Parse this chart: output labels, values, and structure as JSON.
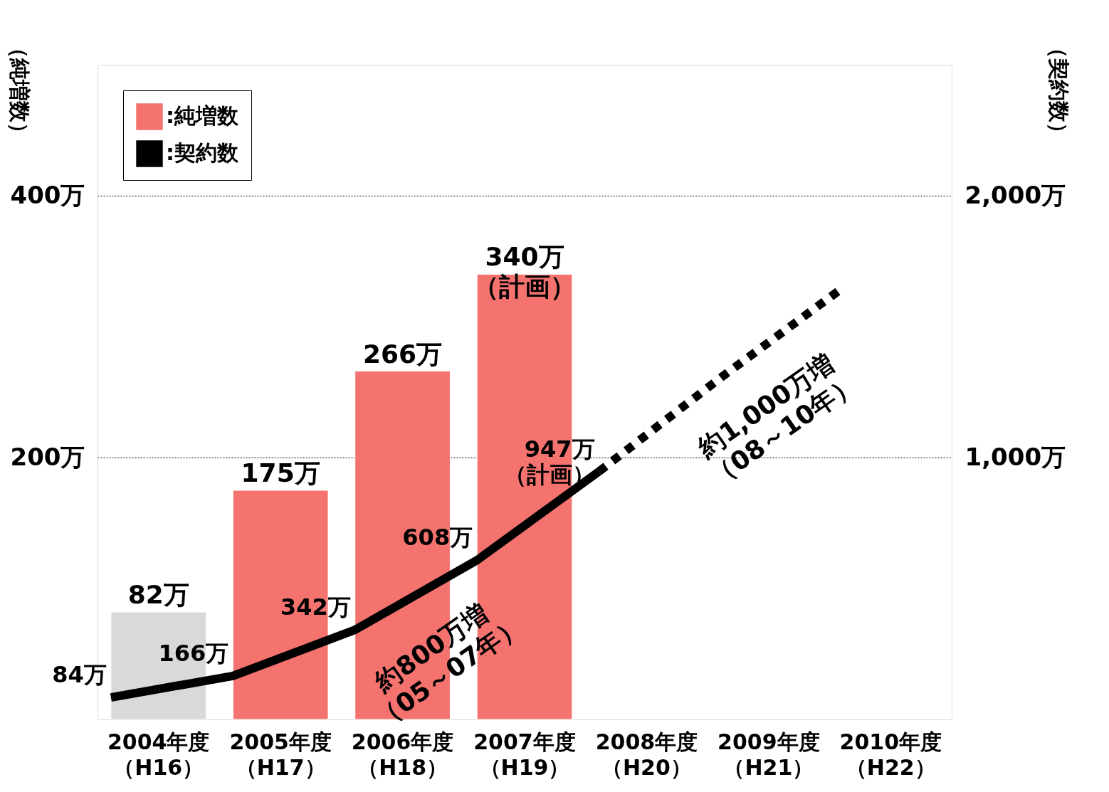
{
  "chart_data": {
    "type": "bar",
    "ylabel": "（純増数）",
    "y2label": "（契約数）",
    "categories": [
      "2004年度（H16）",
      "2005年度（H17）",
      "2006年度（H18）",
      "2007年度（H19）",
      "2008年度（H20）",
      "2009年度（H21）",
      "2010年度（H22）"
    ],
    "ylim": [
      0,
      500
    ],
    "yticks": [
      {
        "value": 200,
        "label": "200万"
      },
      {
        "value": 400,
        "label": "400万"
      }
    ],
    "y2lim": [
      0,
      2500
    ],
    "y2ticks": [
      {
        "value": 1000,
        "label": "1,000万"
      },
      {
        "value": 2000,
        "label": "2,000万"
      }
    ],
    "series": [
      {
        "name": ":純増数",
        "color": "#f4736f",
        "colors": [
          "#d9d9d9",
          "#f4736f",
          "#f4736f",
          "#f4736f",
          null,
          null,
          null
        ],
        "values": [
          82,
          175,
          266,
          340,
          null,
          null,
          null
        ],
        "value_labels": [
          "82万",
          "175万",
          "266万",
          "340万（計画）",
          null,
          null,
          null
        ]
      },
      {
        "name": ":契約数",
        "type": "line",
        "axis": "y2",
        "color": "#000000",
        "line_style": "solid",
        "values": [
          84,
          166,
          342,
          608,
          947,
          null,
          null
        ],
        "value_labels": [
          "84万",
          "166万",
          "342万",
          "608万",
          "947万（計画）",
          null,
          null
        ]
      },
      {
        "type": "line",
        "axis": "y2",
        "color": "#000000",
        "line_style": "dotted",
        "values": [
          null,
          null,
          null,
          null,
          947,
          1306,
          1649
        ]
      }
    ],
    "annotations": [
      "約800万増（05～07年）",
      "約1,000万増（08～10年）"
    ],
    "grid": true,
    "legend": "top left"
  }
}
